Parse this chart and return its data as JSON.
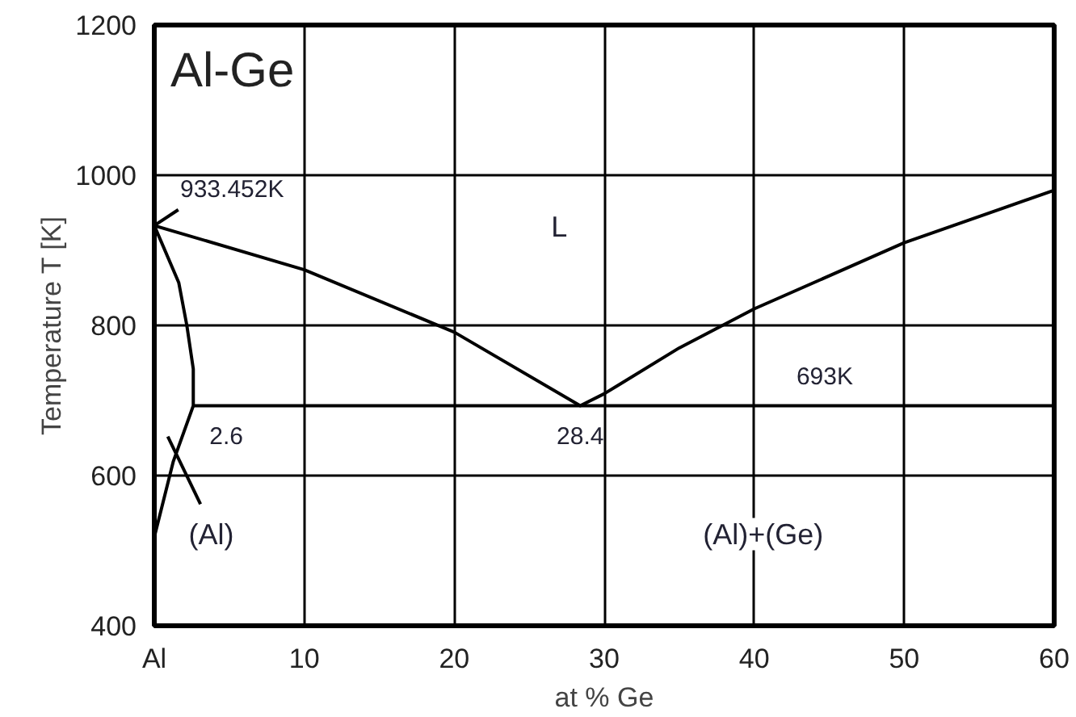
{
  "chart_data": {
    "type": "line",
    "title": "Al-Ge",
    "xlabel": "at % Ge",
    "ylabel": "Temperature T [K]",
    "xlim": [
      0,
      60
    ],
    "ylim": [
      400,
      1200
    ],
    "xticks": [
      {
        "value": 0,
        "label": "Al"
      },
      10,
      20,
      30,
      40,
      50,
      60
    ],
    "yticks": [
      400,
      600,
      800,
      1000,
      1200
    ],
    "grid": true,
    "marker": "none",
    "line_style": "solid",
    "series": [
      {
        "color": "#000000",
        "x": [
          0,
          10,
          20,
          28.4,
          30,
          35,
          40,
          50,
          60
        ],
        "values": [
          933,
          874,
          791,
          693,
          709,
          770,
          822,
          910,
          980
        ]
      },
      {
        "color": "#000000",
        "x": [
          0,
          1.63,
          2.17,
          2.6,
          2.6,
          1.27,
          0
        ],
        "values": [
          933,
          857,
          800,
          742,
          693,
          619,
          518
        ]
      },
      {
        "color": "#000000",
        "x": [
          2.6,
          60
        ],
        "values": [
          693,
          693
        ]
      },
      {
        "color": "#000000",
        "x": [
          0,
          1.6
        ],
        "values": [
          933,
          954
        ]
      },
      {
        "color": "#000000",
        "x": [
          0.9,
          3.08
        ],
        "values": [
          652,
          562
        ]
      }
    ],
    "annotations": [
      {
        "text": "933.452K",
        "x": 0,
        "y": 933
      },
      "L",
      {
        "text": "2.6",
        "x": 2.6,
        "y": 693
      },
      {
        "text": "28.4",
        "x": 28.4,
        "y": 693
      },
      {
        "text": "693K",
        "x": 44.7,
        "y": 693
      },
      "(Al)",
      "(Al)+(Ge)"
    ]
  }
}
